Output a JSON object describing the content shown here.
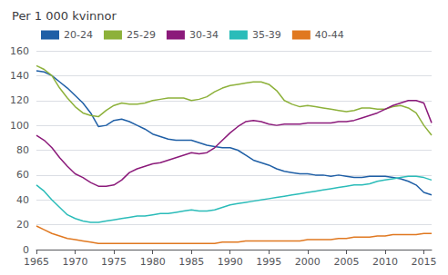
{
  "chart_data": {
    "type": "line",
    "title": "Per 1 000 kvinnor",
    "x": [
      1965,
      1966,
      1967,
      1968,
      1969,
      1970,
      1971,
      1972,
      1973,
      1974,
      1975,
      1976,
      1977,
      1978,
      1979,
      1980,
      1981,
      1982,
      1983,
      1984,
      1985,
      1986,
      1987,
      1988,
      1989,
      1990,
      1991,
      1992,
      1993,
      1994,
      1995,
      1996,
      1997,
      1998,
      1999,
      2000,
      2001,
      2002,
      2003,
      2004,
      2005,
      2006,
      2007,
      2008,
      2009,
      2010,
      2011,
      2012,
      2013,
      2014,
      2015,
      2016
    ],
    "series": [
      {
        "name": "20-24",
        "color": "#1f5fa6",
        "values": [
          144,
          143,
          140,
          135,
          130,
          124,
          118,
          110,
          99,
          100,
          104,
          105,
          103,
          100,
          97,
          93,
          91,
          89,
          88,
          88,
          88,
          86,
          84,
          83,
          82,
          82,
          80,
          76,
          72,
          70,
          68,
          65,
          63,
          62,
          61,
          61,
          60,
          60,
          59,
          60,
          59,
          58,
          58,
          59,
          59,
          59,
          58,
          57,
          55,
          52,
          46,
          44
        ]
      },
      {
        "name": "25-29",
        "color": "#8db13a",
        "values": [
          148,
          145,
          140,
          130,
          122,
          115,
          110,
          108,
          107,
          112,
          116,
          118,
          117,
          117,
          118,
          120,
          121,
          122,
          122,
          122,
          120,
          121,
          123,
          127,
          130,
          132,
          133,
          134,
          135,
          135,
          133,
          128,
          120,
          117,
          115,
          116,
          115,
          114,
          113,
          112,
          111,
          112,
          114,
          114,
          113,
          113,
          115,
          116,
          114,
          110,
          100,
          92
        ]
      },
      {
        "name": "30-34",
        "color": "#8b1a7a",
        "values": [
          92,
          88,
          82,
          74,
          67,
          61,
          58,
          54,
          51,
          51,
          52,
          56,
          62,
          65,
          67,
          69,
          70,
          72,
          74,
          76,
          78,
          77,
          78,
          82,
          88,
          94,
          99,
          103,
          104,
          103,
          101,
          100,
          101,
          101,
          101,
          102,
          102,
          102,
          102,
          103,
          103,
          104,
          106,
          108,
          110,
          113,
          116,
          118,
          120,
          120,
          118,
          102
        ]
      },
      {
        "name": "35-39",
        "color": "#2bbcb9",
        "values": [
          52,
          47,
          40,
          34,
          28,
          25,
          23,
          22,
          22,
          23,
          24,
          25,
          26,
          27,
          27,
          28,
          29,
          29,
          30,
          31,
          32,
          31,
          31,
          32,
          34,
          36,
          37,
          38,
          39,
          40,
          41,
          42,
          43,
          44,
          45,
          46,
          47,
          48,
          49,
          50,
          51,
          52,
          52,
          53,
          55,
          56,
          57,
          58,
          59,
          59,
          58,
          56
        ]
      },
      {
        "name": "40-44",
        "color": "#e07820",
        "values": [
          19,
          16,
          13,
          11,
          9,
          8,
          7,
          6,
          5,
          5,
          5,
          5,
          5,
          5,
          5,
          5,
          5,
          5,
          5,
          5,
          5,
          5,
          5,
          5,
          6,
          6,
          6,
          7,
          7,
          7,
          7,
          7,
          7,
          7,
          7,
          8,
          8,
          8,
          8,
          9,
          9,
          10,
          10,
          10,
          11,
          11,
          12,
          12,
          12,
          12,
          13,
          13
        ]
      }
    ],
    "xlim": [
      1965,
      2016
    ],
    "ylim": [
      0,
      160
    ],
    "xticks": [
      1965,
      1970,
      1975,
      1980,
      1985,
      1990,
      1995,
      2000,
      2005,
      2010,
      2015
    ],
    "yticks": [
      0,
      20,
      40,
      60,
      80,
      100,
      120,
      140,
      160
    ],
    "grid": true,
    "legend": "upper left"
  }
}
